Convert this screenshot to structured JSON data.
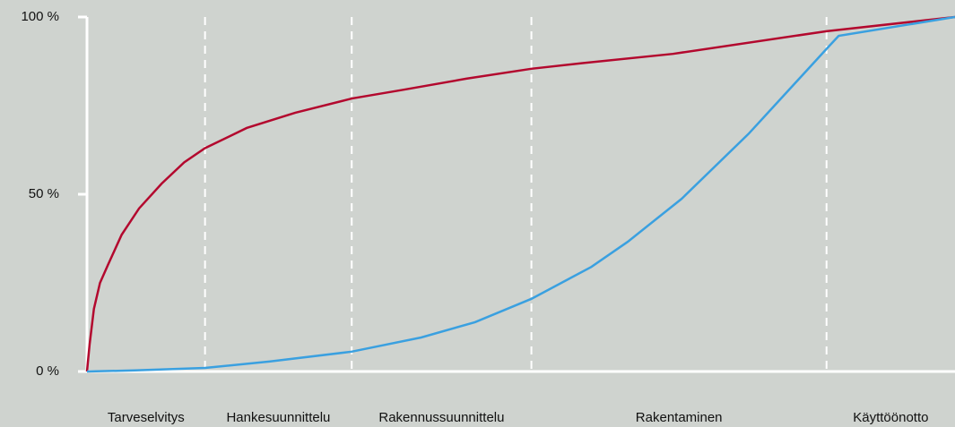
{
  "chart_data": {
    "type": "line",
    "phases": [
      "Tarveselvitys",
      "Hankesuunnittelu",
      "Rakennussuunnittelu",
      "Rakentaminen",
      "Käyttöönotto"
    ],
    "phase_edges": [
      0,
      13.6,
      30.5,
      51.2,
      85.2,
      100
    ],
    "xlim": [
      0,
      100
    ],
    "ylim": [
      0,
      100
    ],
    "yticks": [
      {
        "value": 0,
        "label": "0 %"
      },
      {
        "value": 50,
        "label": "50 %"
      },
      {
        "value": 100,
        "label": "100 %"
      }
    ],
    "series": [
      {
        "color": "#b3082e",
        "x": [
          0,
          0.3,
          0.8,
          1.5,
          2.4,
          4,
          6,
          8.6,
          11.2,
          13.6,
          18.4,
          24,
          30.5,
          36.5,
          43.7,
          51.2,
          57.1,
          67.5,
          85.2,
          100
        ],
        "values": [
          0,
          7.6,
          17.7,
          25,
          30,
          38.6,
          46,
          53,
          59,
          63,
          68.7,
          73,
          77,
          79.5,
          82.6,
          85.4,
          87,
          89.6,
          96,
          100
        ]
      },
      {
        "color": "#3aa0e0",
        "x": [
          0,
          5.5,
          13.6,
          21,
          30.5,
          38.5,
          44.7,
          51.2,
          58.1,
          62.3,
          68.5,
          76.2,
          85.2,
          86.6,
          100
        ],
        "values": [
          0,
          0.3,
          1,
          2.8,
          5.6,
          9.6,
          13.9,
          20.5,
          29.5,
          36.6,
          48.7,
          67,
          91,
          94.7,
          100
        ]
      }
    ]
  }
}
